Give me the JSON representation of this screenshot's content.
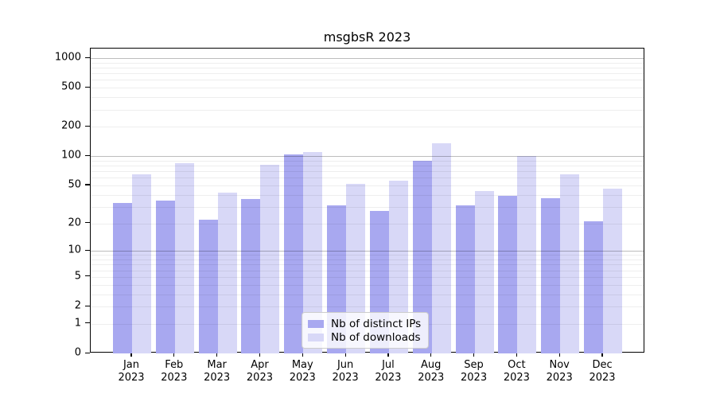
{
  "title": "msgbsR 2023",
  "chart_data": {
    "type": "bar",
    "title": "msgbsR 2023",
    "scale": "log1p",
    "categories": [
      "Jan",
      "Feb",
      "Mar",
      "Apr",
      "May",
      "Jun",
      "Jul",
      "Aug",
      "Sep",
      "Oct",
      "Nov",
      "Dec"
    ],
    "year": "2023",
    "series": [
      {
        "name": "Nb of distinct IPs",
        "color": "#a8a8f0",
        "values": [
          33,
          35,
          22,
          36,
          105,
          31,
          27,
          89,
          31,
          39,
          37,
          21
        ]
      },
      {
        "name": "Nb of downloads",
        "color": "#d8d8f7",
        "values": [
          65,
          84,
          42,
          82,
          111,
          52,
          56,
          135,
          44,
          100,
          65,
          46
        ]
      }
    ],
    "yticks": [
      0,
      1,
      2,
      5,
      10,
      20,
      50,
      100,
      200,
      500,
      1000
    ],
    "ylim": [
      0,
      1000
    ],
    "grid": true,
    "grid_major_values": [
      10,
      100,
      1000
    ],
    "legend_position": "bottom-center",
    "legend_labels": [
      "Nb of distinct IPs",
      "Nb of downloads"
    ]
  },
  "colors": {
    "bar_ips": "#a8a8f0",
    "bar_downloads": "#d8d8f7",
    "grid_minor": "#ededed",
    "grid_major": "#bdbdbd",
    "axis": "#000000"
  }
}
